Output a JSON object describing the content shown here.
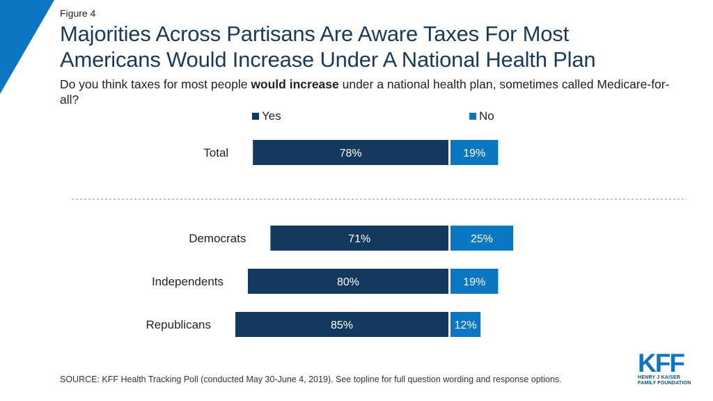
{
  "figure_label": "Figure 4",
  "title_line1": "Majorities Across Partisans Are Aware Taxes For Most",
  "title_line2": "Americans Would Increase Under A National Health Plan",
  "subtitle": {
    "part1": "Do you think taxes for most people ",
    "bold": "would increase",
    "part2": " under a national health plan, sometimes called Medicare-for-all?"
  },
  "source": "SOURCE: KFF Health Tracking Poll (conducted May 30-June 4, 2019). See topline for full question wording and response options.",
  "logo": {
    "mark": "KFF",
    "line1": "HENRY J KAISER",
    "line2": "FAMILY FOUNDATION"
  },
  "colors": {
    "yes": "#133a5e",
    "no": "#0b77c2",
    "accent": "#0b77c2",
    "title": "#1b3a57"
  },
  "chart_data": {
    "type": "bar",
    "orientation": "diverging-horizontal",
    "categories": [
      "Total",
      "Democrats",
      "Independents",
      "Republicans"
    ],
    "series": [
      {
        "name": "Yes",
        "values": [
          78,
          71,
          80,
          85
        ],
        "labels": [
          "78%",
          "71%",
          "80%",
          "85%"
        ]
      },
      {
        "name": "No",
        "values": [
          19,
          25,
          19,
          12
        ],
        "labels": [
          "19%",
          "25%",
          "19%",
          "12%"
        ]
      }
    ],
    "separator_after_category": "Total",
    "legend_position": "top",
    "grid": false,
    "unit": "%"
  }
}
